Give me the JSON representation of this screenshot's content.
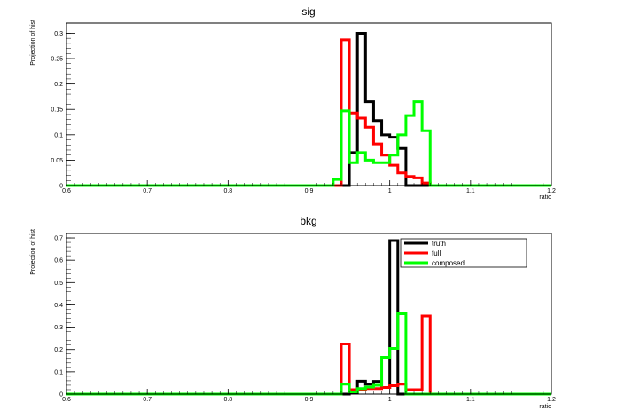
{
  "chart_data": [
    {
      "type": "line",
      "title": "sig",
      "xlabel": "ratio",
      "ylabel": "Projection of hist",
      "xlim": [
        0.6,
        1.2
      ],
      "ylim": [
        0,
        0.32
      ],
      "grid": false,
      "x_ticks": [
        "0.6",
        "0.7",
        "0.8",
        "0.9",
        "1",
        "1.1",
        "1.2"
      ],
      "y_ticks": [
        "0",
        "0.05",
        "0.1",
        "0.15",
        "0.2",
        "0.25",
        "0.3"
      ],
      "x_tick_values": [
        0.6,
        0.7,
        0.8,
        0.9,
        1.0,
        1.1,
        1.2
      ],
      "y_tick_values": [
        0,
        0.05,
        0.1,
        0.15,
        0.2,
        0.25,
        0.3
      ],
      "bin_edges": [
        0.6,
        0.93,
        0.94,
        0.95,
        0.96,
        0.97,
        0.98,
        0.99,
        1.0,
        1.01,
        1.02,
        1.03,
        1.04,
        1.05,
        1.2
      ],
      "series": [
        {
          "name": "truth",
          "color": "#000000",
          "values": [
            0,
            0,
            0,
            0.065,
            0.3,
            0.165,
            0.128,
            0.1,
            0.095,
            0.073,
            0,
            0,
            0,
            0
          ]
        },
        {
          "name": "full",
          "color": "#ff0000",
          "values": [
            0,
            0,
            0.287,
            0.143,
            0.133,
            0.115,
            0.082,
            0.06,
            0.04,
            0.025,
            0.018,
            0.015,
            0.005,
            0
          ]
        },
        {
          "name": "composed",
          "color": "#00ff00",
          "values": [
            0,
            0.012,
            0.147,
            0.045,
            0.065,
            0.05,
            0.045,
            0.045,
            0.06,
            0.1,
            0.138,
            0.165,
            0.108,
            0
          ]
        }
      ]
    },
    {
      "type": "line",
      "title": "bkg",
      "xlabel": "ratio",
      "ylabel": "Projection of hist",
      "xlim": [
        0.6,
        1.2
      ],
      "ylim": [
        0,
        0.72
      ],
      "grid": false,
      "legend": {
        "placement": "top-right",
        "entries": [
          "truth",
          "full",
          "composed"
        ]
      },
      "x_ticks": [
        "0.6",
        "0.7",
        "0.8",
        "0.9",
        "1",
        "1.1",
        "1.2"
      ],
      "y_ticks": [
        "0",
        "0.1",
        "0.2",
        "0.3",
        "0.4",
        "0.5",
        "0.6",
        "0.7"
      ],
      "x_tick_values": [
        0.6,
        0.7,
        0.8,
        0.9,
        1.0,
        1.1,
        1.2
      ],
      "y_tick_values": [
        0,
        0.1,
        0.2,
        0.3,
        0.4,
        0.5,
        0.6,
        0.7
      ],
      "bin_edges": [
        0.6,
        0.93,
        0.94,
        0.95,
        0.96,
        0.97,
        0.98,
        0.99,
        1.0,
        1.01,
        1.02,
        1.03,
        1.04,
        1.05,
        1.2
      ],
      "series": [
        {
          "name": "truth",
          "color": "#000000",
          "values": [
            0,
            0,
            0,
            0.005,
            0.058,
            0.045,
            0.057,
            0.03,
            0.688,
            0,
            0,
            0,
            0,
            0
          ]
        },
        {
          "name": "full",
          "color": "#ff0000",
          "values": [
            0,
            0,
            0.225,
            0.02,
            0.02,
            0.025,
            0.025,
            0.03,
            0.038,
            0.045,
            0.02,
            0.02,
            0.35,
            0
          ]
        },
        {
          "name": "composed",
          "color": "#00ff00",
          "values": [
            0,
            0,
            0.045,
            0.01,
            0.025,
            0.032,
            0.04,
            0.165,
            0.205,
            0.36,
            0,
            0,
            0,
            0
          ]
        }
      ]
    }
  ]
}
